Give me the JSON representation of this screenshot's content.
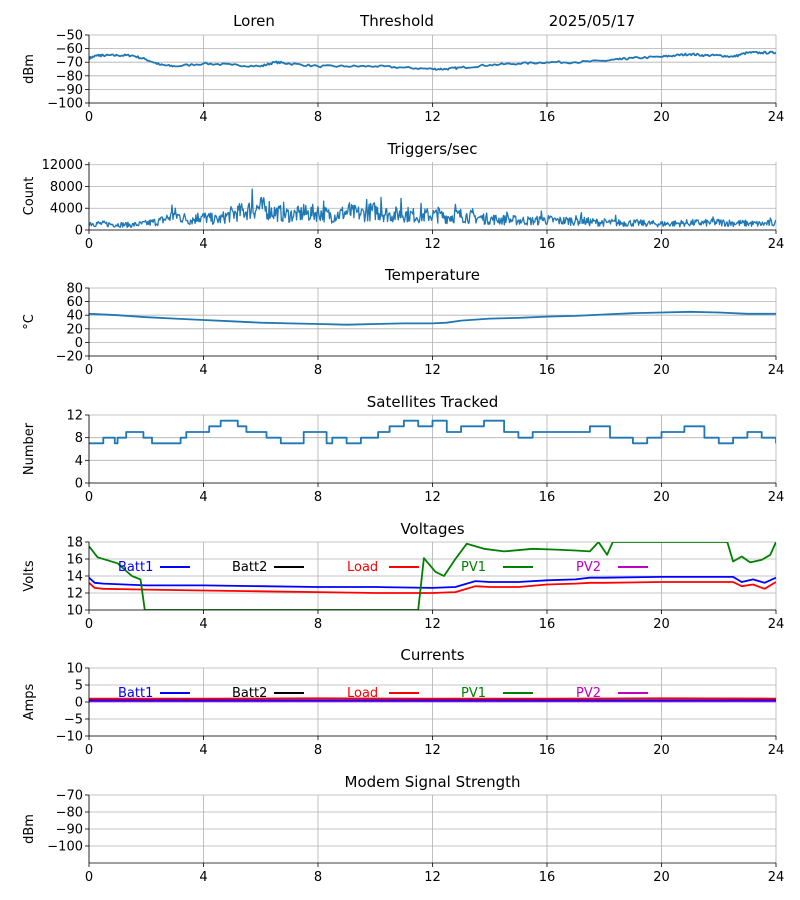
{
  "header": {
    "station": "Loren",
    "mode": "Threshold",
    "date": "2025/05/17"
  },
  "chart_data": [
    {
      "id": "rssi",
      "type": "line",
      "title": "",
      "ylabel": "dBm",
      "xlim": [
        0,
        24
      ],
      "xticks": [
        0,
        4,
        8,
        12,
        16,
        20,
        24
      ],
      "ylim": [
        -100,
        -50
      ],
      "yticks": [
        -100,
        -90,
        -80,
        -70,
        -60,
        -50
      ],
      "grid": true,
      "series": [
        {
          "color": "#1f77b4",
          "x": [
            0,
            0.3,
            0.5,
            1,
            1.5,
            2,
            2.5,
            3,
            4,
            5,
            6,
            6.5,
            7,
            8,
            9,
            10,
            11,
            12,
            12.5,
            13,
            14,
            15,
            16,
            17,
            18,
            18.5,
            19,
            20,
            20.5,
            21,
            21.5,
            22,
            22.5,
            23,
            23.5,
            24
          ],
          "y": [
            -67,
            -65,
            -65,
            -65,
            -65,
            -68,
            -72,
            -73,
            -71,
            -72,
            -73,
            -70,
            -71,
            -73,
            -73,
            -73,
            -74,
            -75,
            -75,
            -74,
            -72,
            -71,
            -70,
            -70,
            -69,
            -68,
            -67,
            -66,
            -65,
            -64,
            -65,
            -65,
            -66,
            -63,
            -63,
            -63
          ]
        }
      ]
    },
    {
      "id": "triggers",
      "type": "line",
      "title": "Triggers/sec",
      "ylabel": "Count",
      "xlim": [
        0,
        24
      ],
      "xticks": [
        0,
        4,
        8,
        12,
        16,
        20,
        24
      ],
      "ylim": [
        0,
        12500
      ],
      "yticks": [
        0,
        4000,
        8000,
        12000
      ],
      "grid": true,
      "series": [
        {
          "color": "#1f77b4",
          "x": [
            0,
            0.5,
            1,
            1.5,
            2,
            2.5,
            3,
            3.5,
            4,
            4.5,
            5,
            5.5,
            6,
            6.5,
            7,
            7.5,
            8,
            8.5,
            9,
            9.5,
            10,
            10.5,
            11,
            11.5,
            12,
            12.5,
            13,
            13.5,
            14,
            14.5,
            15,
            15.5,
            16,
            16.5,
            17,
            17.5,
            18,
            18.5,
            19,
            19.5,
            20,
            20.5,
            21,
            21.5,
            22,
            22.5,
            23,
            23.5,
            24
          ],
          "y": [
            1400,
            1200,
            1100,
            1000,
            1300,
            1800,
            3000,
            2000,
            2500,
            2000,
            3200,
            3800,
            4500,
            3500,
            3000,
            3200,
            3500,
            2800,
            3500,
            3200,
            3800,
            3000,
            3200,
            2800,
            3000,
            2600,
            2900,
            2500,
            2200,
            2000,
            1900,
            1800,
            2000,
            1800,
            1900,
            1600,
            1500,
            1400,
            1400,
            1300,
            1200,
            1300,
            1400,
            1400,
            1500,
            1400,
            1300,
            1200,
            1400
          ],
          "spikes": [
            [
              2.9,
              4600
            ],
            [
              3.8,
              3100
            ],
            [
              5.3,
              4200
            ],
            [
              5.7,
              7500
            ],
            [
              6.3,
              5200
            ],
            [
              6.8,
              5100
            ],
            [
              7.5,
              4700
            ],
            [
              8.2,
              5300
            ],
            [
              9.1,
              5000
            ],
            [
              9.7,
              5600
            ],
            [
              10.2,
              6000
            ],
            [
              10.9,
              5800
            ],
            [
              11.6,
              4900
            ],
            [
              12.2,
              4200
            ],
            [
              12.8,
              4700
            ],
            [
              13.4,
              3900
            ],
            [
              14.6,
              3300
            ],
            [
              15.8,
              3500
            ],
            [
              17.2,
              3200
            ],
            [
              18.4,
              2700
            ],
            [
              21.8,
              2400
            ],
            [
              23.8,
              2200
            ]
          ]
        }
      ]
    },
    {
      "id": "temperature",
      "type": "line",
      "title": "Temperature",
      "ylabel": "°C",
      "xlim": [
        0,
        24
      ],
      "xticks": [
        0,
        4,
        8,
        12,
        16,
        20,
        24
      ],
      "ylim": [
        -20,
        80
      ],
      "yticks": [
        -20,
        0,
        20,
        40,
        60,
        80
      ],
      "grid": true,
      "series": [
        {
          "color": "#1f77b4",
          "x": [
            0,
            1,
            2,
            3,
            4,
            5,
            6,
            7,
            8,
            9,
            10,
            11,
            12,
            12.5,
            13,
            14,
            15,
            16,
            17,
            18,
            19,
            20,
            21,
            22,
            23,
            24
          ],
          "y": [
            42,
            40,
            37,
            35,
            33,
            31,
            29,
            28,
            27,
            26,
            27,
            28,
            28,
            29,
            32,
            35,
            36,
            38,
            39,
            41,
            43,
            44,
            45,
            44,
            42,
            42
          ]
        }
      ]
    },
    {
      "id": "satellites",
      "type": "line",
      "title": "Satellites Tracked",
      "ylabel": "Number",
      "xlim": [
        0,
        24
      ],
      "xticks": [
        0,
        4,
        8,
        12,
        16,
        20,
        24
      ],
      "ylim": [
        0,
        12
      ],
      "yticks": [
        0,
        4,
        8,
        12
      ],
      "grid": true,
      "series": [
        {
          "color": "#1f77b4",
          "step": true,
          "x": [
            0,
            0.5,
            0.9,
            1,
            1.3,
            1.9,
            2.2,
            3,
            3.2,
            3.4,
            4.2,
            4.6,
            5.2,
            5.5,
            6.2,
            6.7,
            7.5,
            8.3,
            8.5,
            9,
            9.5,
            10.1,
            10.5,
            11,
            11.5,
            12,
            12.5,
            13,
            13.8,
            14.5,
            15,
            15.5,
            16.2,
            17.5,
            18.2,
            19,
            19.5,
            20,
            20.8,
            21.5,
            22,
            22.5,
            23,
            23.5,
            24
          ],
          "y": [
            7,
            8,
            7,
            8,
            9,
            8,
            7,
            7,
            8,
            9,
            10,
            11,
            10,
            9,
            8,
            7,
            9,
            7,
            8,
            7,
            8,
            9,
            10,
            11,
            10,
            11,
            9,
            10,
            11,
            9,
            8,
            9,
            9,
            10,
            8,
            7,
            8,
            9,
            10,
            8,
            7,
            8,
            9,
            8,
            7
          ]
        }
      ]
    },
    {
      "id": "voltages",
      "type": "line",
      "title": "Voltages",
      "ylabel": "Volts",
      "xlim": [
        0,
        24
      ],
      "xticks": [
        0,
        4,
        8,
        12,
        16,
        20,
        24
      ],
      "ylim": [
        10,
        18
      ],
      "yticks": [
        10,
        12,
        14,
        16,
        18
      ],
      "grid": true,
      "legend": [
        "Batt1",
        "Batt2",
        "Load",
        "PV1",
        "PV2"
      ],
      "legend_colors": [
        "#0000ff",
        "#000000",
        "#ff0000",
        "#008000",
        "#bf00bf"
      ],
      "series": [
        {
          "name": "Batt1",
          "color": "#0000ff",
          "x": [
            0,
            0.2,
            0.5,
            2,
            4,
            6,
            8,
            10,
            12,
            12.8,
            13.2,
            13.5,
            14,
            15,
            16,
            17,
            17.5,
            18,
            20,
            22.5,
            22.8,
            23.2,
            23.6,
            24
          ],
          "y": [
            13.8,
            13.2,
            13.1,
            12.9,
            12.9,
            12.8,
            12.7,
            12.7,
            12.6,
            12.7,
            13.1,
            13.4,
            13.3,
            13.3,
            13.5,
            13.6,
            13.8,
            13.8,
            13.9,
            13.9,
            13.3,
            13.6,
            13.2,
            13.8
          ]
        },
        {
          "name": "Load",
          "color": "#ff0000",
          "x": [
            0,
            0.2,
            0.5,
            2,
            4,
            6,
            8,
            10,
            12,
            12.8,
            13.2,
            13.5,
            14,
            15,
            16,
            17,
            17.5,
            18,
            20,
            22.5,
            22.8,
            23.2,
            23.6,
            24
          ],
          "y": [
            13.2,
            12.6,
            12.5,
            12.4,
            12.3,
            12.2,
            12.1,
            12.0,
            12.0,
            12.1,
            12.5,
            12.8,
            12.7,
            12.7,
            13.0,
            13.1,
            13.2,
            13.2,
            13.3,
            13.3,
            12.8,
            13.0,
            12.5,
            13.3
          ]
        },
        {
          "name": "PV1",
          "color": "#008000",
          "x": [
            0,
            0.3,
            1,
            1.5,
            1.8,
            1.95,
            11.5,
            11.7,
            12.1,
            12.4,
            12.8,
            13.2,
            13.8,
            14.5,
            15.5,
            16.3,
            17.0,
            17.5,
            17.8,
            18.1,
            18.3,
            22.3,
            22.5,
            22.8,
            23.1,
            23.5,
            23.8,
            24
          ],
          "y": [
            17.5,
            16.2,
            15.5,
            14.0,
            13.6,
            10.0,
            10.0,
            16.1,
            14.5,
            14.0,
            16.0,
            17.8,
            17.2,
            16.9,
            17.2,
            17.1,
            17.0,
            16.9,
            18.0,
            16.5,
            18.0,
            18.0,
            15.7,
            16.3,
            15.6,
            15.9,
            16.5,
            18.0
          ]
        }
      ]
    },
    {
      "id": "currents",
      "type": "line",
      "title": "Currents",
      "ylabel": "Amps",
      "xlim": [
        0,
        24
      ],
      "xticks": [
        0,
        4,
        8,
        12,
        16,
        20,
        24
      ],
      "ylim": [
        -10,
        10
      ],
      "yticks": [
        -10,
        -5,
        0,
        5,
        10
      ],
      "grid": true,
      "legend": [
        "Batt1",
        "Batt2",
        "Load",
        "PV1",
        "PV2"
      ],
      "legend_colors": [
        "#0000ff",
        "#000000",
        "#ff0000",
        "#008000",
        "#bf00bf"
      ],
      "series": [
        {
          "name": "PV2",
          "color": "#bf00bf",
          "x": [
            0,
            24
          ],
          "y": [
            0.2,
            0.2
          ]
        },
        {
          "name": "Batt1",
          "color": "#0000ff",
          "x": [
            0,
            24
          ],
          "y": [
            0.5,
            0.5
          ]
        },
        {
          "name": "Load",
          "color": "#ff0000",
          "x": [
            0,
            4,
            8,
            12,
            16,
            20,
            24
          ],
          "y": [
            1.0,
            1.0,
            1.1,
            1.0,
            1.0,
            1.1,
            1.0
          ]
        }
      ]
    },
    {
      "id": "modem",
      "type": "line",
      "title": "Modem Signal Strength",
      "ylabel": "dBm",
      "xlim": [
        0,
        24
      ],
      "xticks": [
        0,
        4,
        8,
        12,
        16,
        20,
        24
      ],
      "ylim": [
        -110,
        -70
      ],
      "yticks": [
        -100,
        -90,
        -80,
        -70
      ],
      "grid": true,
      "series": []
    }
  ]
}
